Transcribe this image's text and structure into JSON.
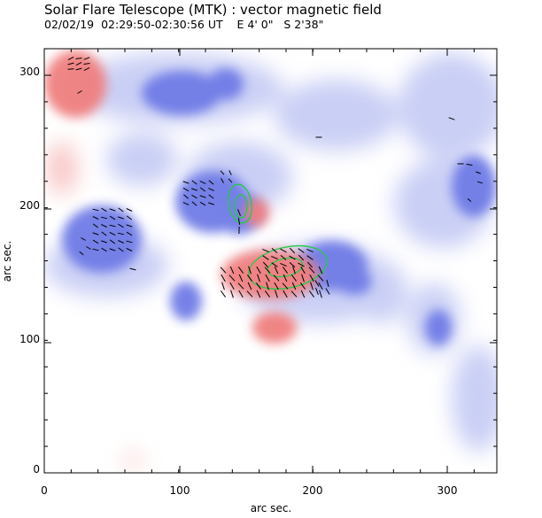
{
  "header": {
    "title": "Solar Flare Telescope (MTK) : vector magnetic field",
    "subtitle": "02/02/19  02:29:50-02:30:56 UT    E 4' 0\"   S 2'38\""
  },
  "plot": {
    "xlabel": "arc sec.",
    "ylabel": "arc sec.",
    "xlim": [
      0,
      340
    ],
    "ylim": [
      0,
      320
    ],
    "xticks": [
      "0",
      "100",
      "200",
      "300"
    ],
    "yticks": [
      "0",
      "100",
      "200",
      "300"
    ],
    "colors": {
      "positive": "#f08a8a",
      "negative": "#8c96e8",
      "contour": "#22cc44",
      "vector": "#000000"
    }
  }
}
